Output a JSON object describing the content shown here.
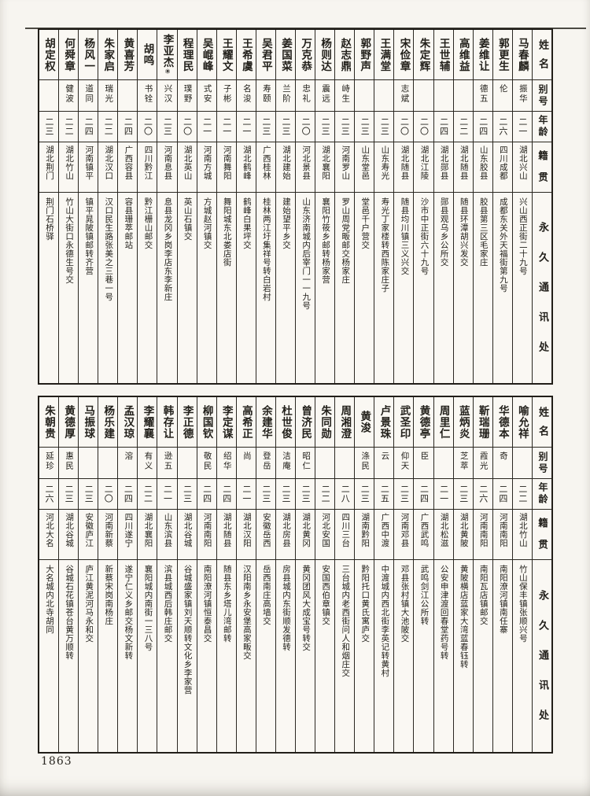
{
  "page": {
    "page_number": "1863",
    "ink_color": "#22201b",
    "paper_color": "#f7f5f0"
  },
  "headers": {
    "name": "姓名",
    "alias": "别号",
    "age": "年龄",
    "native": "籍贯",
    "address": "永久通讯处"
  },
  "tables": [
    {
      "entries": [
        {
          "name": "马春麟",
          "alias": "振华",
          "age": "二一",
          "native": "湖北兴山",
          "address": "兴山西正街二十九号"
        },
        {
          "name": "郭更生",
          "alias": "伦",
          "age": "二六",
          "native": "四川成都",
          "address": "成都东关外天福街第九号"
        },
        {
          "name": "姜维让",
          "alias": "德五",
          "age": "二四",
          "native": "山东胶县",
          "address": "胶县第三区毛家庄"
        },
        {
          "name": "高维益",
          "alias": "",
          "age": "二二",
          "native": "湖北随县",
          "address": "随县环潭胡兴发交"
        },
        {
          "name": "王世辅",
          "alias": "",
          "age": "二四",
          "native": "湖北郧县",
          "address": "郧县观乌乡公所交"
        },
        {
          "name": "朱定辉",
          "alias": "",
          "age": "二〇",
          "native": "湖北江陵",
          "address": "沙市中正街六十九号"
        },
        {
          "name": "宋俭章",
          "alias": "志斌",
          "age": "二〇",
          "native": "湖北随县",
          "address": "随县均川镇三义兴交"
        },
        {
          "name": "王满堂",
          "alias": "",
          "age": "二三",
          "native": "山东寿光",
          "address": "寿光丁家楼转西陈家庄子"
        },
        {
          "name": "郭野声",
          "alias": "",
          "age": "二三",
          "native": "山东堂邑",
          "address": "堂邑千户营交"
        },
        {
          "name": "赵志鼎",
          "alias": "峙生",
          "age": "二三",
          "native": "河南罗山",
          "address": "罗山周党畈邮交杨家庄"
        },
        {
          "name": "杨则达",
          "alias": "震远",
          "age": "二三",
          "native": "湖北襄阳",
          "address": "襄阳竹筱乡邮转杨家营"
        },
        {
          "name": "万克恭",
          "alias": "忠礼",
          "age": "二〇",
          "native": "河北景县",
          "address": "山东济南城内后宰门一一九号"
        },
        {
          "name": "姜国菜",
          "alias": "兰阶",
          "age": "二三",
          "native": "湖北建始",
          "address": "建始望平乡交"
        },
        {
          "name": "吴君平",
          "alias": "寿颐",
          "age": "二三",
          "native": "广西桂林",
          "address": "桂林两江圩集祥号转白岩村"
        },
        {
          "name": "王希虞",
          "alias": "名浚",
          "age": "二一",
          "native": "湖北鹤峰",
          "address": "鹤峰白果坪交"
        },
        {
          "name": "王耀文",
          "alias": "子彬",
          "age": "二一",
          "native": "河南舞阳",
          "address": "舞阳城东北娄店街"
        },
        {
          "name": "吴崐峰",
          "alias": "式安",
          "age": "二一",
          "native": "河南方城",
          "address": "方城赵河镇交"
        },
        {
          "name": "程理民",
          "alias": "璞野",
          "age": "二〇",
          "native": "湖北英山",
          "address": "英山石镇交"
        },
        {
          "name": "李亚杰",
          "mark": "⑧",
          "alias": "兴汉",
          "age": "二三",
          "native": "河南息县",
          "address": "息县龙冈乡岗李店东李新庄"
        },
        {
          "name": "胡鸣",
          "alias": "书铨",
          "age": "二〇",
          "native": "四川黔江",
          "address": "黔江栅山邮交"
        },
        {
          "name": "黄喜芳",
          "alias": "",
          "age": "二四",
          "native": "广西容县",
          "address": "容县珊萃邮站"
        },
        {
          "name": "朱家启",
          "alias": "瑞光",
          "age": "二二",
          "native": "湖北汉口",
          "address": "汉口民生路张美之三巷一号"
        },
        {
          "name": "杨风一",
          "alias": "道同",
          "age": "二四",
          "native": "河南镇平",
          "address": "镇平晁陂镇邮转齐营"
        },
        {
          "name": "何舜章",
          "alias": "健波",
          "age": "二二",
          "native": "湖北竹山",
          "address": "竹山大街口永德生号交"
        },
        {
          "name": "胡定权",
          "alias": "",
          "age": "二三",
          "native": "湖北荆门",
          "address": "荆门石桥驿"
        }
      ]
    },
    {
      "entries": [
        {
          "name": "喻允祥",
          "alias": "",
          "age": "二二",
          "native": "湖北竹山",
          "address": "竹山保丰镇张顺兴号"
        },
        {
          "name": "华德本",
          "alias": "奇",
          "age": "二四",
          "native": "河南南阳",
          "address": "南阳潦河镇南任寨"
        },
        {
          "name": "靳瑞珊",
          "alias": "霞光",
          "age": "二六",
          "native": "河南南阳",
          "address": "南阳瓦店镇邮交"
        },
        {
          "name": "蓝炳炎",
          "alias": "芝萃",
          "age": "二三",
          "native": "湖北黄陂",
          "address": "黄陂横店蓝家大湾蓝春钰转"
        },
        {
          "name": "周里仁",
          "alias": "",
          "age": "二一",
          "native": "湖北松滋",
          "address": "公安申津渡回春堂药号转"
        },
        {
          "name": "黄德亭",
          "alias": "臣",
          "age": "二四",
          "native": "广西武鸣",
          "address": "武鸣剑江公所转"
        },
        {
          "name": "武圣印",
          "alias": "仰天",
          "age": "二三",
          "native": "河南邓县",
          "address": "邓县张村镇大池陂交"
        },
        {
          "name": "卢景珠",
          "alias": "云",
          "age": "二五",
          "native": "广西中渡",
          "address": "中渡城内西北街李英记转黄村"
        },
        {
          "name": "黄浚",
          "alias": "涤民",
          "age": "二三",
          "native": "湖南黔阳",
          "address": "黔阳托口黄氏寓庐交"
        },
        {
          "name": "周湘澄",
          "alias": "",
          "age": "二八",
          "native": "四川三台",
          "address": "三台城内老西街问人和烟庄交"
        },
        {
          "name": "朱同勋",
          "alias": "",
          "age": "二二",
          "native": "河北安国",
          "address": "安国西伯章镇交"
        },
        {
          "name": "曾济民",
          "alias": "昭仁",
          "age": "二三",
          "native": "湖北黄冈",
          "address": "黄冈团风大成宝号转交"
        },
        {
          "name": "杜世俊",
          "alias": "洁庵",
          "age": "二三",
          "native": "湖北房县",
          "address": "房县城内东街顺发德转"
        },
        {
          "name": "余建华",
          "alias": "登岳",
          "age": "二三",
          "native": "安徽岳西",
          "address": "岳西南庄高墙交"
        },
        {
          "name": "高希正",
          "alias": "尚",
          "age": "二一",
          "native": "湖北汉阳",
          "address": "汉阳南乡永安堡高家畈交"
        },
        {
          "name": "李定谋",
          "alias": "绍华",
          "age": "二四",
          "native": "湖北随县",
          "address": "随县东乡塔儿湾邮转"
        },
        {
          "name": "柳国钦",
          "alias": "敬民",
          "age": "二四",
          "native": "河南南阳",
          "address": "南阳潦河镇恒泰昌交"
        },
        {
          "name": "李正德",
          "alias": "",
          "age": "二三",
          "native": "湖北谷城",
          "address": "谷城盛家镇刘天顺转文化乡李家营"
        },
        {
          "name": "韩存让",
          "alias": "逊五",
          "age": "二一",
          "native": "山东滨县",
          "address": "滨县城西后韩庄邮交"
        },
        {
          "name": "李耀襄",
          "alias": "有义",
          "age": "二二",
          "native": "湖北襄阳",
          "address": "襄阳城内南街一三八号"
        },
        {
          "name": "孟汉琼",
          "alias": "溶",
          "age": "二四",
          "native": "四川遂宁",
          "address": "遂宁仁义乡邮交杨文新转"
        },
        {
          "name": "杨乐建",
          "alias": "",
          "age": "二〇",
          "native": "河南新蔡",
          "address": "新蔡宋岗南杨庄"
        },
        {
          "name": "马振球",
          "alias": "",
          "age": "二三",
          "native": "安徽庐江",
          "address": "庐江黄泥河马永和交"
        },
        {
          "name": "黄德厚",
          "alias": "惠民",
          "age": "二三",
          "native": "湖北谷城",
          "address": "谷城石花镇苍台黄万顺转"
        },
        {
          "name": "朱朝贵",
          "alias": "延珍",
          "age": "二六",
          "native": "河北大名",
          "address": "大名城内北寺胡同"
        }
      ]
    }
  ]
}
